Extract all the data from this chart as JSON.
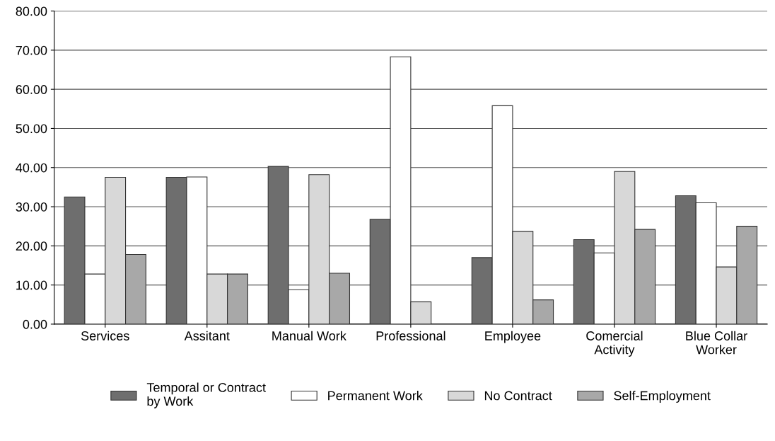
{
  "chart_data": {
    "type": "bar",
    "categories": [
      "Services",
      "Assitant",
      "Manual Work",
      "Professional",
      "Employee",
      "Comercial\nActivity",
      "Blue Collar\nWorker"
    ],
    "series": [
      {
        "name": "Temporal or Contract\nby Work",
        "color": "#6e6e6e",
        "values": [
          32.5,
          37.5,
          40.3,
          26.8,
          17.0,
          21.6,
          32.8
        ]
      },
      {
        "name": "Permanent Work",
        "color": "#ffffff",
        "values": [
          12.8,
          37.6,
          8.8,
          68.3,
          55.8,
          18.2,
          31.0
        ]
      },
      {
        "name": "No Contract",
        "color": "#d8d8d8",
        "values": [
          37.5,
          12.8,
          38.2,
          5.7,
          23.7,
          39.0,
          14.6
        ]
      },
      {
        "name": "Self-Employment",
        "color": "#a8a8a8",
        "values": [
          17.8,
          12.8,
          13.0,
          null,
          6.2,
          24.2,
          25.0
        ]
      }
    ],
    "ylim": [
      0,
      80
    ],
    "yticks": [
      {
        "value": 0,
        "label": "0.00"
      },
      {
        "value": 10,
        "label": "10.00"
      },
      {
        "value": 20,
        "label": "20.00"
      },
      {
        "value": 30,
        "label": "30.00"
      },
      {
        "value": 40,
        "label": "40.00"
      },
      {
        "value": 50,
        "label": "50.00"
      },
      {
        "value": 60,
        "label": "60.00"
      },
      {
        "value": 70,
        "label": "70.00"
      },
      {
        "value": 80,
        "label": "80.00"
      }
    ],
    "grid": "y",
    "legend": "bottom"
  }
}
